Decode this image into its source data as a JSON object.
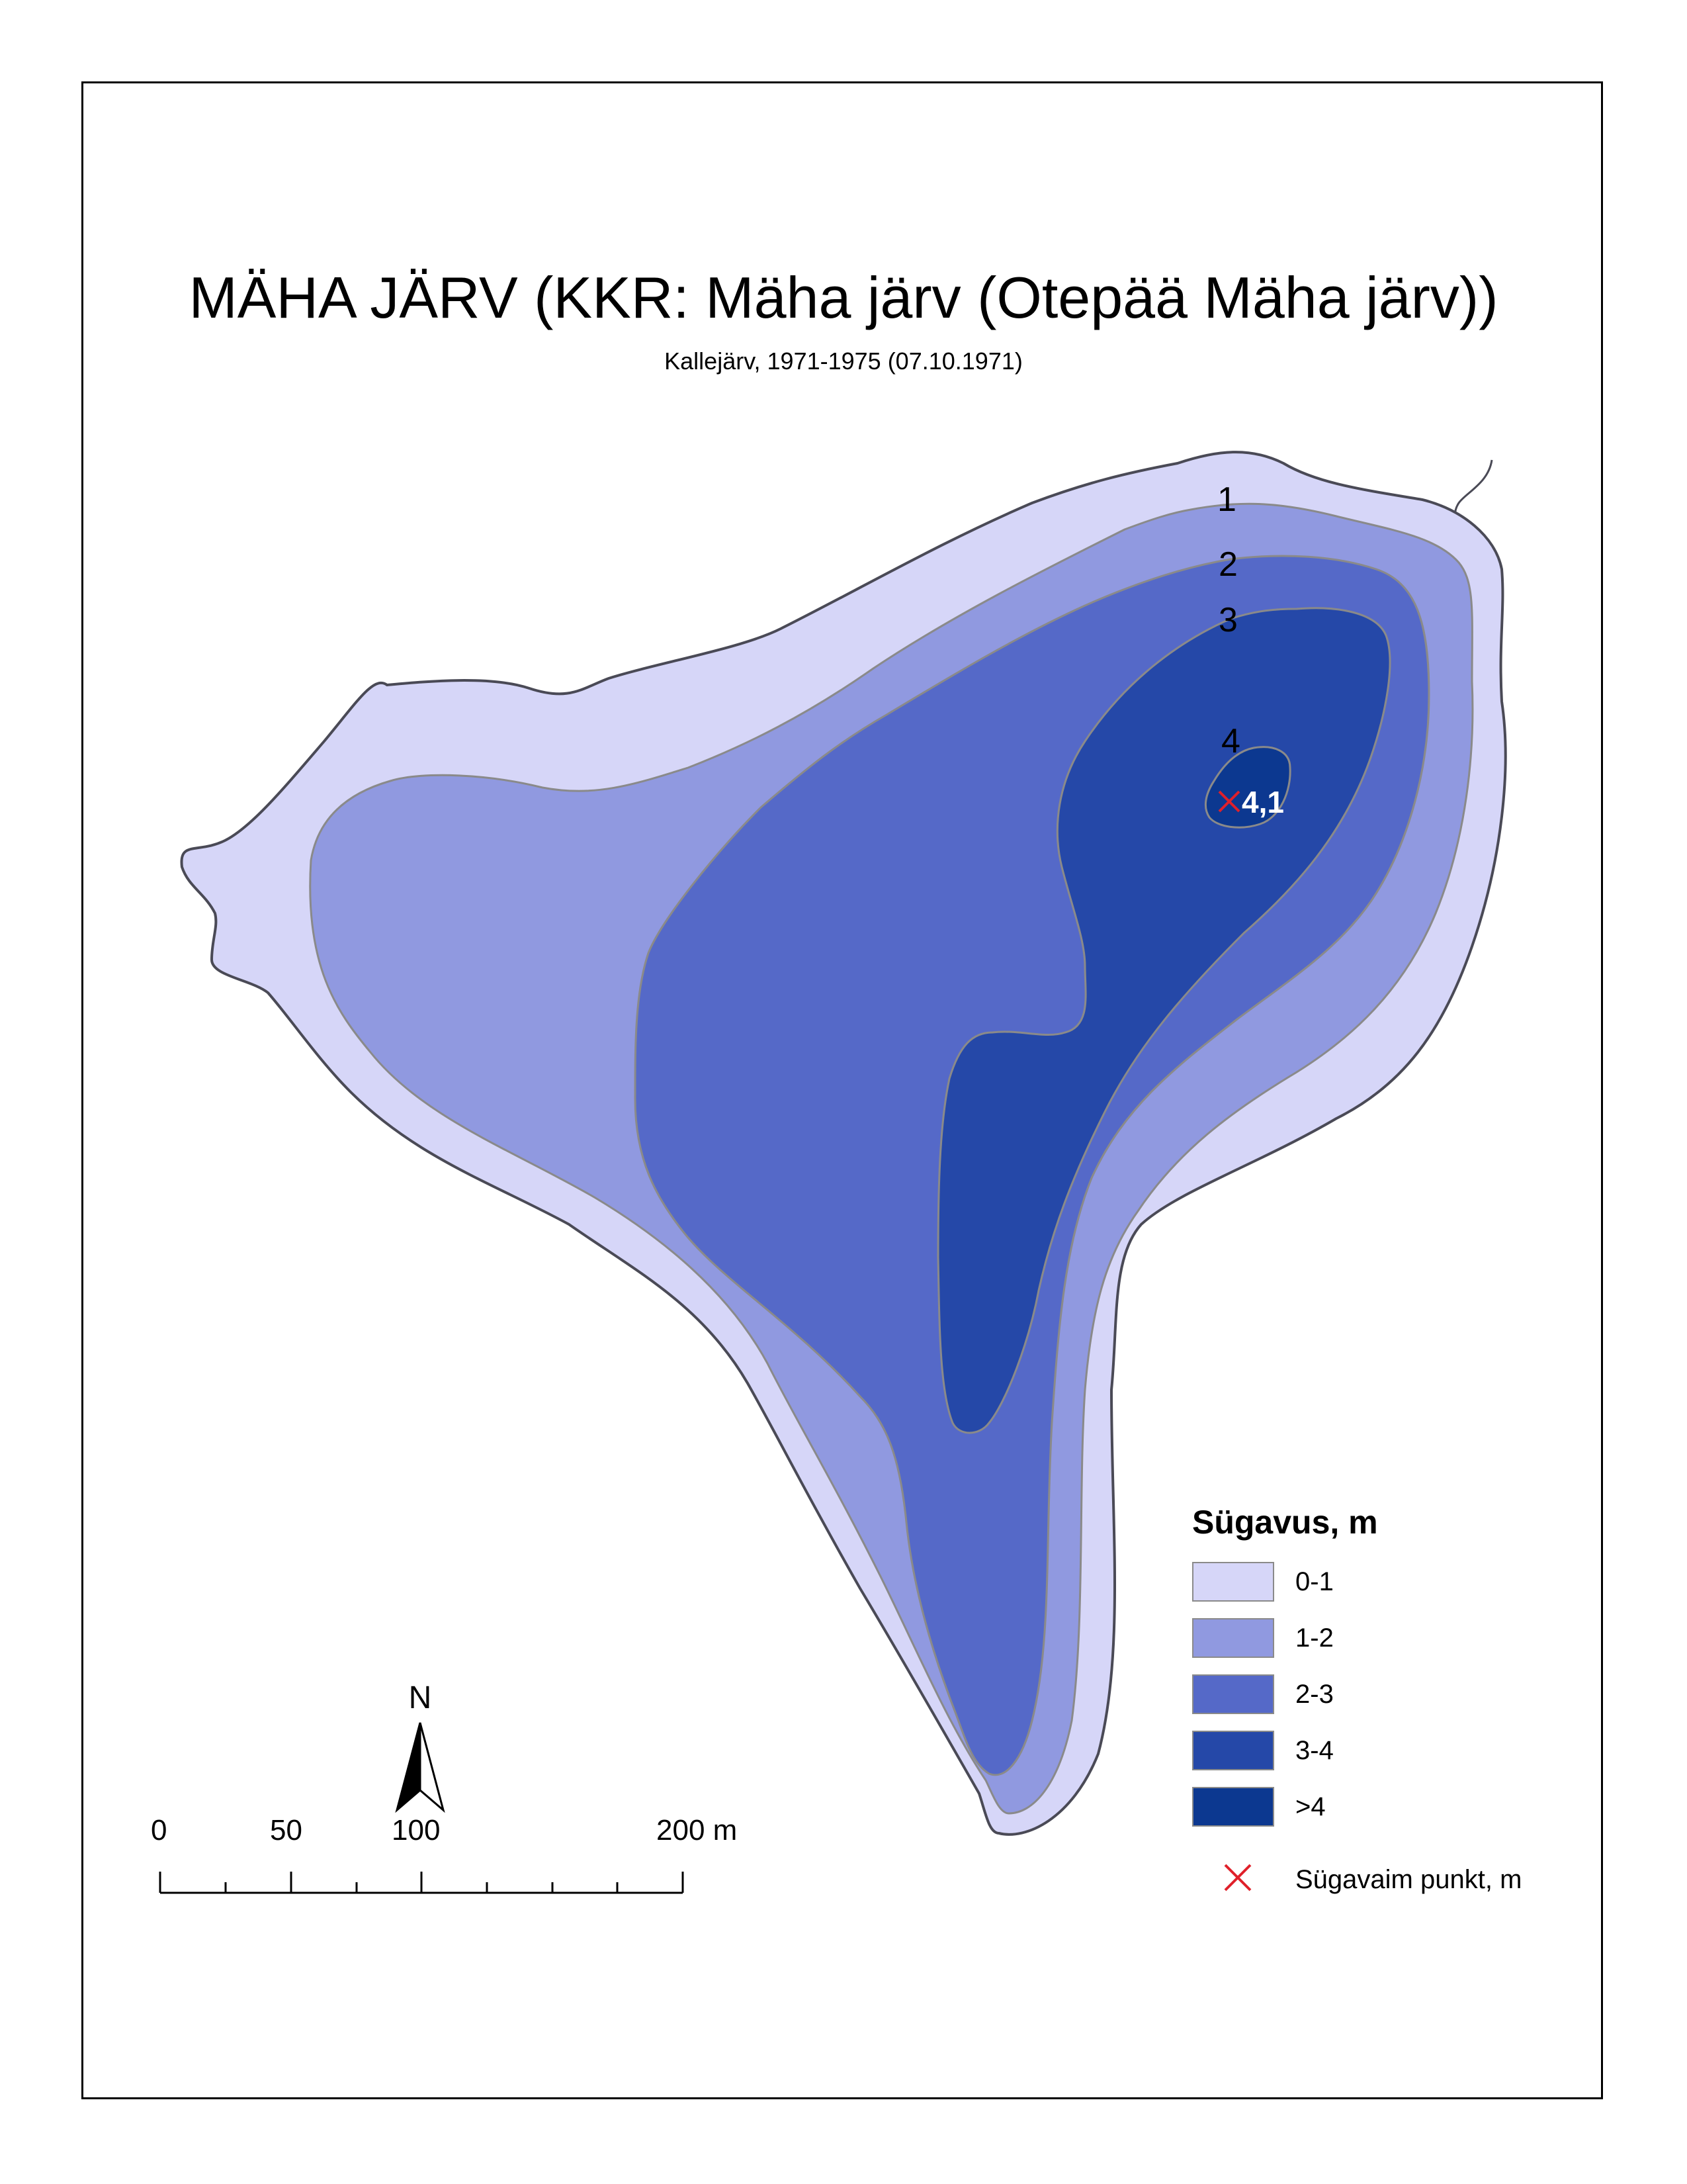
{
  "map": {
    "title": "MÄHA JÄRV (KKR: Mäha järv (Otepää Mäha järv))",
    "subtitle": "Kallejärv, 1971-1975 (07.10.1971)",
    "contour_labels": [
      "1",
      "2",
      "3",
      "4"
    ],
    "deepest_point_value": "4,1"
  },
  "legend": {
    "title": "Sügavus, m",
    "classes": [
      {
        "label": "0-1",
        "color": "#d6d6f8"
      },
      {
        "label": "1-2",
        "color": "#9099e0"
      },
      {
        "label": "2-3",
        "color": "#5569c8"
      },
      {
        "label": "3-4",
        "color": "#2548a8"
      },
      {
        "label": ">4",
        "color": "#0c3890"
      }
    ],
    "point_label": "Sügavaim punkt, m",
    "point_color": "#e0202a"
  },
  "north_arrow": {
    "letter": "N"
  },
  "scale_bar": {
    "labels": [
      "0",
      "50",
      "100",
      "200 m"
    ]
  },
  "colors": {
    "shoreline": "#4a4a56",
    "contour_line": "#8a8a8a",
    "frame": "#000000"
  }
}
